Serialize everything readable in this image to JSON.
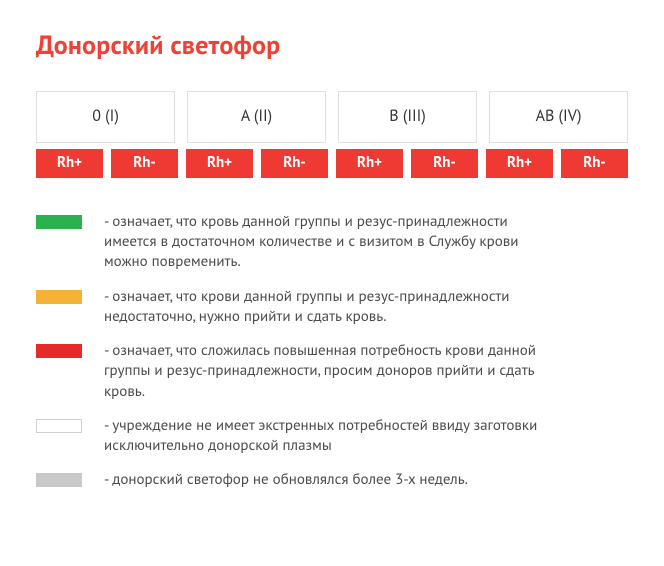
{
  "title": "Донорский светофор",
  "colors": {
    "accent_red": "#ef4136",
    "badge_red": "#ee3a33",
    "green": "#2bb24c",
    "yellow": "#f5b335",
    "red": "#e52a27",
    "white": "#ffffff",
    "gray": "#c9c9c9",
    "border": "#e0e0e0",
    "text": "#4a4a4a"
  },
  "groups": [
    {
      "label": "0 (I)"
    },
    {
      "label": "A (II)"
    },
    {
      "label": "B (III)"
    },
    {
      "label": "AB (IV)"
    }
  ],
  "rh_cells": [
    {
      "label": "Rh+",
      "color": "#ee3a33"
    },
    {
      "label": "Rh-",
      "color": "#ee3a33"
    },
    {
      "label": "Rh+",
      "color": "#ee3a33"
    },
    {
      "label": "Rh-",
      "color": "#ee3a33"
    },
    {
      "label": "Rh+",
      "color": "#ee3a33"
    },
    {
      "label": "Rh-",
      "color": "#ee3a33"
    },
    {
      "label": "Rh+",
      "color": "#ee3a33"
    },
    {
      "label": "Rh-",
      "color": "#ee3a33"
    }
  ],
  "legend": [
    {
      "color": "#2bb24c",
      "bordered": false,
      "text": "- означает, что кровь данной группы и резус-принадлежности имеется в достаточном количестве и с визитом в Службу крови можно повременить."
    },
    {
      "color": "#f5b335",
      "bordered": false,
      "text": "- означает, что крови данной группы и резус-принадлежности недостаточно, нужно прийти и сдать кровь."
    },
    {
      "color": "#e52a27",
      "bordered": false,
      "text": "- означает, что сложилась повышенная потребность крови данной группы и резус-принадлежности, просим доноров прийти и сдать кровь."
    },
    {
      "color": "#ffffff",
      "bordered": true,
      "text": "- учреждение не имеет экстренных потребностей ввиду заготовки исключительно донорской плазмы"
    },
    {
      "color": "#c9c9c9",
      "bordered": false,
      "text": "- донорский светофор не обновлялся более 3-х недель."
    }
  ]
}
